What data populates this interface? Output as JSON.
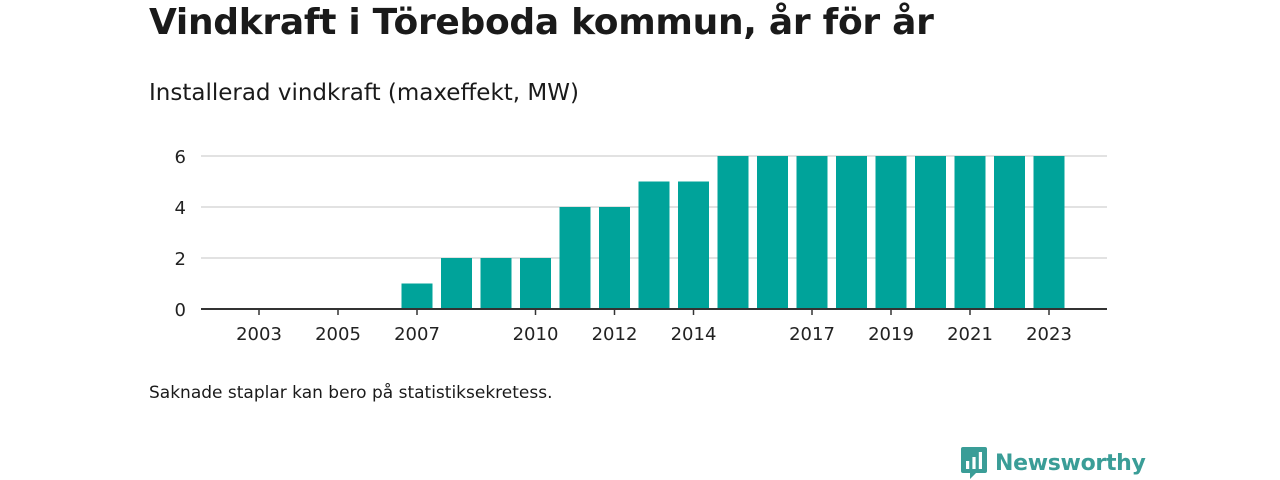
{
  "header": {
    "title": "Vindkraft i Töreboda kommun, år för år",
    "subtitle": "Installerad vindkraft (maxeffekt, MW)"
  },
  "footer": {
    "note": "Saknade staplar kan bero på statistiksekretess.",
    "brand": "Newsworthy",
    "brand_icon": "bar-chart-bubble-icon"
  },
  "colors": {
    "bar": "#00a39a",
    "grid": "#d9d9d9",
    "axis": "#333333",
    "brand": "#3a9d97"
  },
  "chart_data": {
    "type": "bar",
    "title": "Installerad vindkraft (maxeffekt, MW)",
    "categories": [
      2003,
      2004,
      2005,
      2006,
      2007,
      2008,
      2009,
      2010,
      2011,
      2012,
      2013,
      2014,
      2015,
      2016,
      2017,
      2018,
      2019,
      2020,
      2021,
      2022,
      2023
    ],
    "values": [
      0,
      0,
      0,
      0,
      1,
      2,
      2,
      2,
      4,
      4,
      5,
      5,
      6,
      6,
      6,
      6,
      6,
      6,
      6,
      6,
      6
    ],
    "x_tick_labels": [
      "2003",
      "2005",
      "2007",
      "2010",
      "2012",
      "2014",
      "2017",
      "2019",
      "2021",
      "2023"
    ],
    "y_ticks": [
      0,
      2,
      4,
      6
    ],
    "ylim": [
      0,
      6
    ],
    "xlabel": "",
    "ylabel": "",
    "grid": true,
    "legend": "none"
  }
}
